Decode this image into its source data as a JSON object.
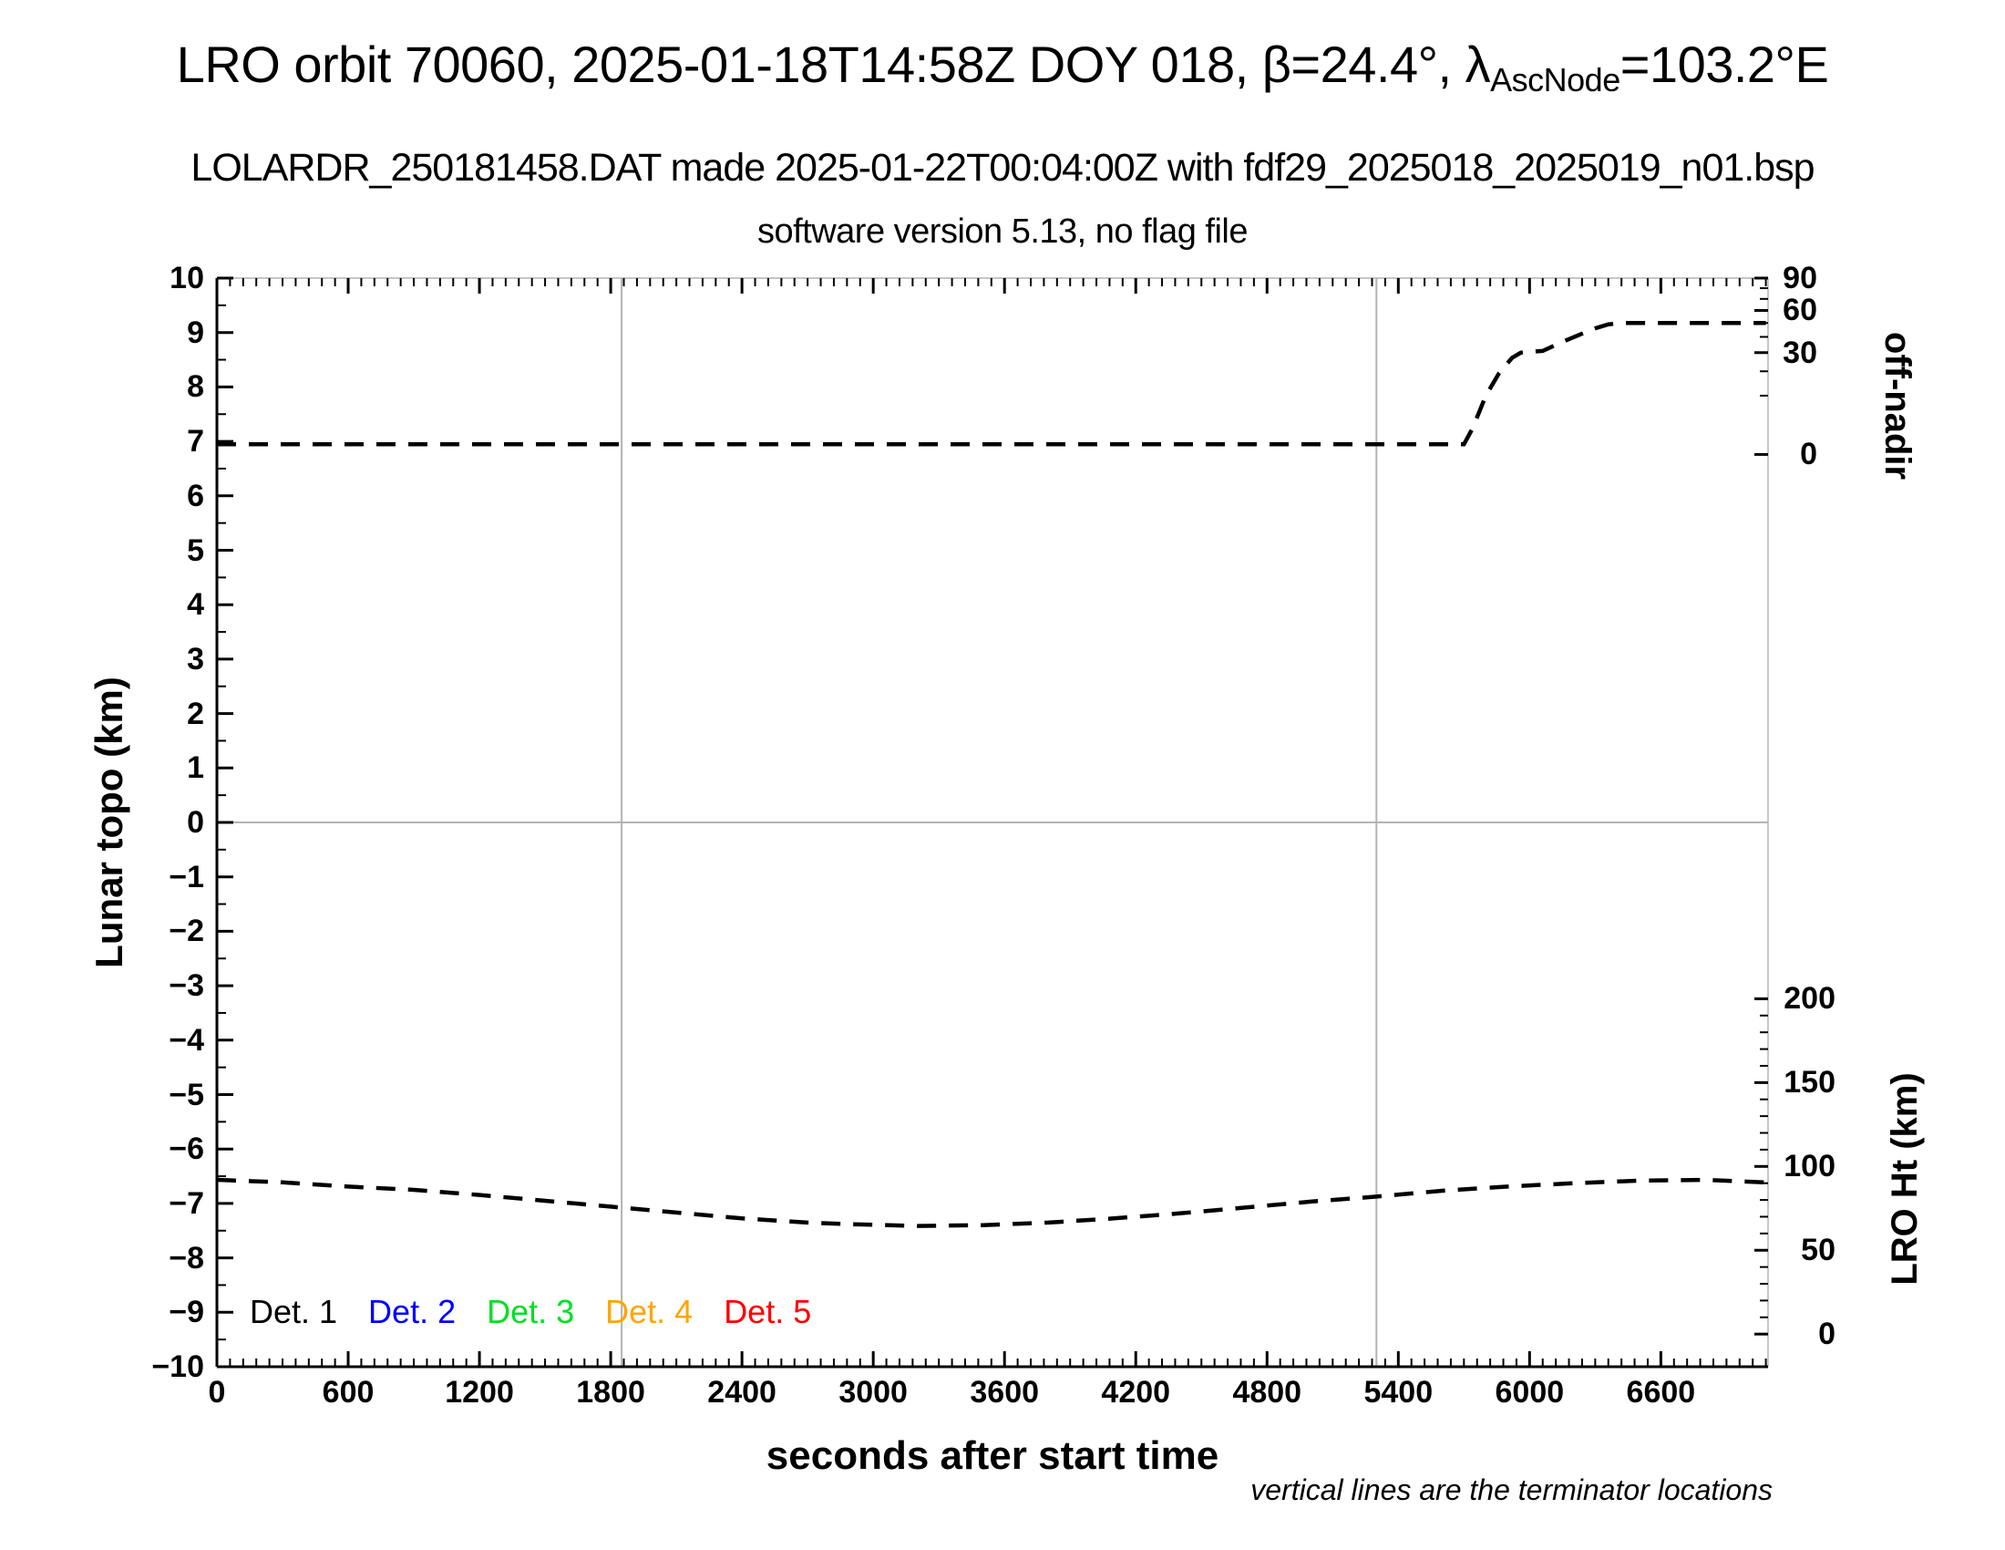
{
  "header": {
    "title_prefix": "LRO orbit 70060, 2025-01-18T14:58Z DOY 018, β=24.4°, λ",
    "title_sub": "AscNode",
    "title_suffix": "=103.2°E",
    "subtitle": "LOLARDR_250181458.DAT made 2025-01-22T00:04:00Z with fdf29_2025018_2025019_n01.bsp",
    "software_line": "software version 5.13, no flag file"
  },
  "footnote": "vertical lines are the terminator locations",
  "legend": {
    "items": [
      {
        "label": "Det. 1",
        "color": "#000000"
      },
      {
        "label": "Det. 2",
        "color": "#0000ff"
      },
      {
        "label": "Det. 3",
        "color": "#00e020"
      },
      {
        "label": "Det. 4",
        "color": "#ffa500"
      },
      {
        "label": "Det. 5",
        "color": "#ff0000"
      }
    ]
  },
  "chart_data": {
    "type": "line",
    "title": "LRO orbit 70060, 2025-01-18T14:58Z DOY 018, β=24.4°, λAscNode=103.2°E",
    "x_axis": {
      "label": "seconds after start time",
      "min": 0,
      "max": 7090,
      "major_step": 600,
      "minor_step": 60,
      "ticks": [
        {
          "value": 0,
          "label": "0"
        },
        {
          "value": 600,
          "label": "600"
        },
        {
          "value": 1200,
          "label": "1200"
        },
        {
          "value": 1800,
          "label": "1800"
        },
        {
          "value": 2400,
          "label": "2400"
        },
        {
          "value": 3000,
          "label": "3000"
        },
        {
          "value": 3600,
          "label": "3600"
        },
        {
          "value": 4200,
          "label": "4200"
        },
        {
          "value": 4800,
          "label": "4800"
        },
        {
          "value": 5400,
          "label": "5400"
        },
        {
          "value": 6000,
          "label": "6000"
        },
        {
          "value": 6600,
          "label": "6600"
        }
      ]
    },
    "y_left": {
      "label": "Lunar topo (km)",
      "min": -10,
      "max": 10,
      "major_step": 1,
      "minor_step": 0.5,
      "ticks": [
        {
          "value": 10,
          "label": "10"
        },
        {
          "value": 9,
          "label": "9"
        },
        {
          "value": 8,
          "label": "8"
        },
        {
          "value": 7,
          "label": "7"
        },
        {
          "value": 6,
          "label": "6"
        },
        {
          "value": 5,
          "label": "5"
        },
        {
          "value": 4,
          "label": "4"
        },
        {
          "value": 3,
          "label": "3"
        },
        {
          "value": 2,
          "label": "2"
        },
        {
          "value": 1,
          "label": "1"
        },
        {
          "value": 0,
          "label": "0"
        },
        {
          "value": -1,
          "label": "−1"
        },
        {
          "value": -2,
          "label": "−2"
        },
        {
          "value": -3,
          "label": "−3"
        },
        {
          "value": -4,
          "label": "−4"
        },
        {
          "value": -5,
          "label": "−5"
        },
        {
          "value": -6,
          "label": "−6"
        },
        {
          "value": -7,
          "label": "−7"
        },
        {
          "value": -8,
          "label": "−8"
        },
        {
          "value": -9,
          "label": "−9"
        },
        {
          "value": -10,
          "label": "−10"
        }
      ],
      "zero_gridline": true
    },
    "y_right_top": {
      "label": "off-nadir",
      "unit": "degrees",
      "scale": "sqrt",
      "max": 90,
      "frac_at_zero": 0.162,
      "frac_at_max": 0.0,
      "ticks": [
        {
          "value": 90,
          "label": "90"
        },
        {
          "value": 60,
          "label": "60"
        },
        {
          "value": 30,
          "label": "30"
        },
        {
          "value": 0,
          "label": "0"
        }
      ],
      "minor_ticks": [
        80,
        70,
        50,
        40,
        20,
        10
      ]
    },
    "y_right_bottom": {
      "label": "LRO Ht (km)",
      "unit": "km",
      "scale": "linear",
      "max": 200,
      "frac_at_zero": 0.97,
      "frac_at_max": 0.662,
      "ticks": [
        {
          "value": 200,
          "label": "200"
        },
        {
          "value": 150,
          "label": "150"
        },
        {
          "value": 100,
          "label": "100"
        },
        {
          "value": 50,
          "label": "50"
        },
        {
          "value": 0,
          "label": "0"
        }
      ],
      "minor_step": 10
    },
    "terminator_lines_s": [
      1850,
      5300
    ],
    "series": [
      {
        "name": "off-nadir angle",
        "axis": "y_right_top",
        "style": "dashed",
        "color": "#000000",
        "points": [
          [
            0,
            0.3
          ],
          [
            1000,
            0.3
          ],
          [
            2000,
            0.3
          ],
          [
            3000,
            0.3
          ],
          [
            4000,
            0.3
          ],
          [
            5000,
            0.3
          ],
          [
            5700,
            0.3
          ],
          [
            5740,
            2
          ],
          [
            5800,
            10
          ],
          [
            5860,
            19
          ],
          [
            5920,
            27
          ],
          [
            5960,
            30
          ],
          [
            6000,
            30.5
          ],
          [
            6060,
            31
          ],
          [
            6140,
            36
          ],
          [
            6220,
            41
          ],
          [
            6300,
            46
          ],
          [
            6360,
            49
          ],
          [
            6420,
            50
          ],
          [
            6700,
            50
          ],
          [
            7080,
            50
          ]
        ]
      },
      {
        "name": "LRO height",
        "axis": "y_right_bottom",
        "style": "dashed",
        "color": "#000000",
        "points": [
          [
            0,
            92
          ],
          [
            300,
            90.5
          ],
          [
            600,
            88
          ],
          [
            900,
            86
          ],
          [
            1200,
            83
          ],
          [
            1500,
            79.5
          ],
          [
            1800,
            76
          ],
          [
            2100,
            72.5
          ],
          [
            2400,
            69
          ],
          [
            2700,
            66.5
          ],
          [
            2900,
            65.5
          ],
          [
            3200,
            64.5
          ],
          [
            3500,
            65
          ],
          [
            3800,
            66.5
          ],
          [
            4100,
            69
          ],
          [
            4400,
            72
          ],
          [
            4700,
            75.5
          ],
          [
            5000,
            79
          ],
          [
            5300,
            82
          ],
          [
            5600,
            85.5
          ],
          [
            5900,
            88
          ],
          [
            6200,
            90
          ],
          [
            6500,
            91.5
          ],
          [
            6800,
            92
          ],
          [
            7080,
            90.5
          ]
        ]
      }
    ]
  }
}
